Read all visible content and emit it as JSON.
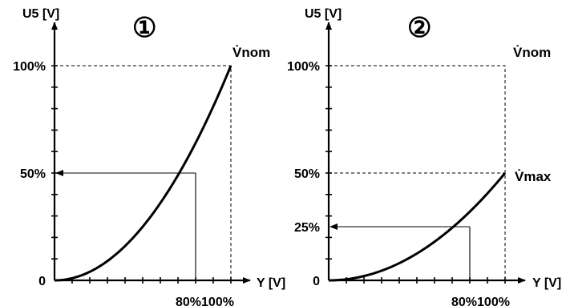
{
  "chart_data": [
    {
      "type": "line",
      "badge": "①",
      "ylabel": "U5 [V]",
      "xlabel": "Y [V]",
      "y_ticks": [
        {
          "value": 0,
          "label": "0"
        },
        {
          "value": 50,
          "label": "50%"
        },
        {
          "value": 100,
          "label": "100%"
        }
      ],
      "x_ticks_label": "80%100%",
      "top_label": "V̇nom",
      "side_label": "",
      "ylim": [
        0,
        100
      ],
      "xlim": [
        0,
        100
      ],
      "curve": {
        "x_end": 100,
        "y_end": 100,
        "exponent": 2
      },
      "reference_point": {
        "x": 80,
        "y": 50
      },
      "arrow_label_value": 50
    },
    {
      "type": "line",
      "badge": "②",
      "ylabel": "U5 [V]",
      "xlabel": "Y [V]",
      "y_ticks": [
        {
          "value": 0,
          "label": "0"
        },
        {
          "value": 25,
          "label": "25%"
        },
        {
          "value": 50,
          "label": "50%"
        },
        {
          "value": 100,
          "label": "100%"
        }
      ],
      "x_ticks_label": "80%100%",
      "top_label": "V̇nom",
      "side_label": "V̇max",
      "ylim": [
        0,
        100
      ],
      "xlim": [
        0,
        100
      ],
      "curve": {
        "x_end": 100,
        "y_end": 50,
        "exponent": 2
      },
      "reference_point": {
        "x": 80,
        "y": 25
      },
      "arrow_label_value": 25
    }
  ]
}
